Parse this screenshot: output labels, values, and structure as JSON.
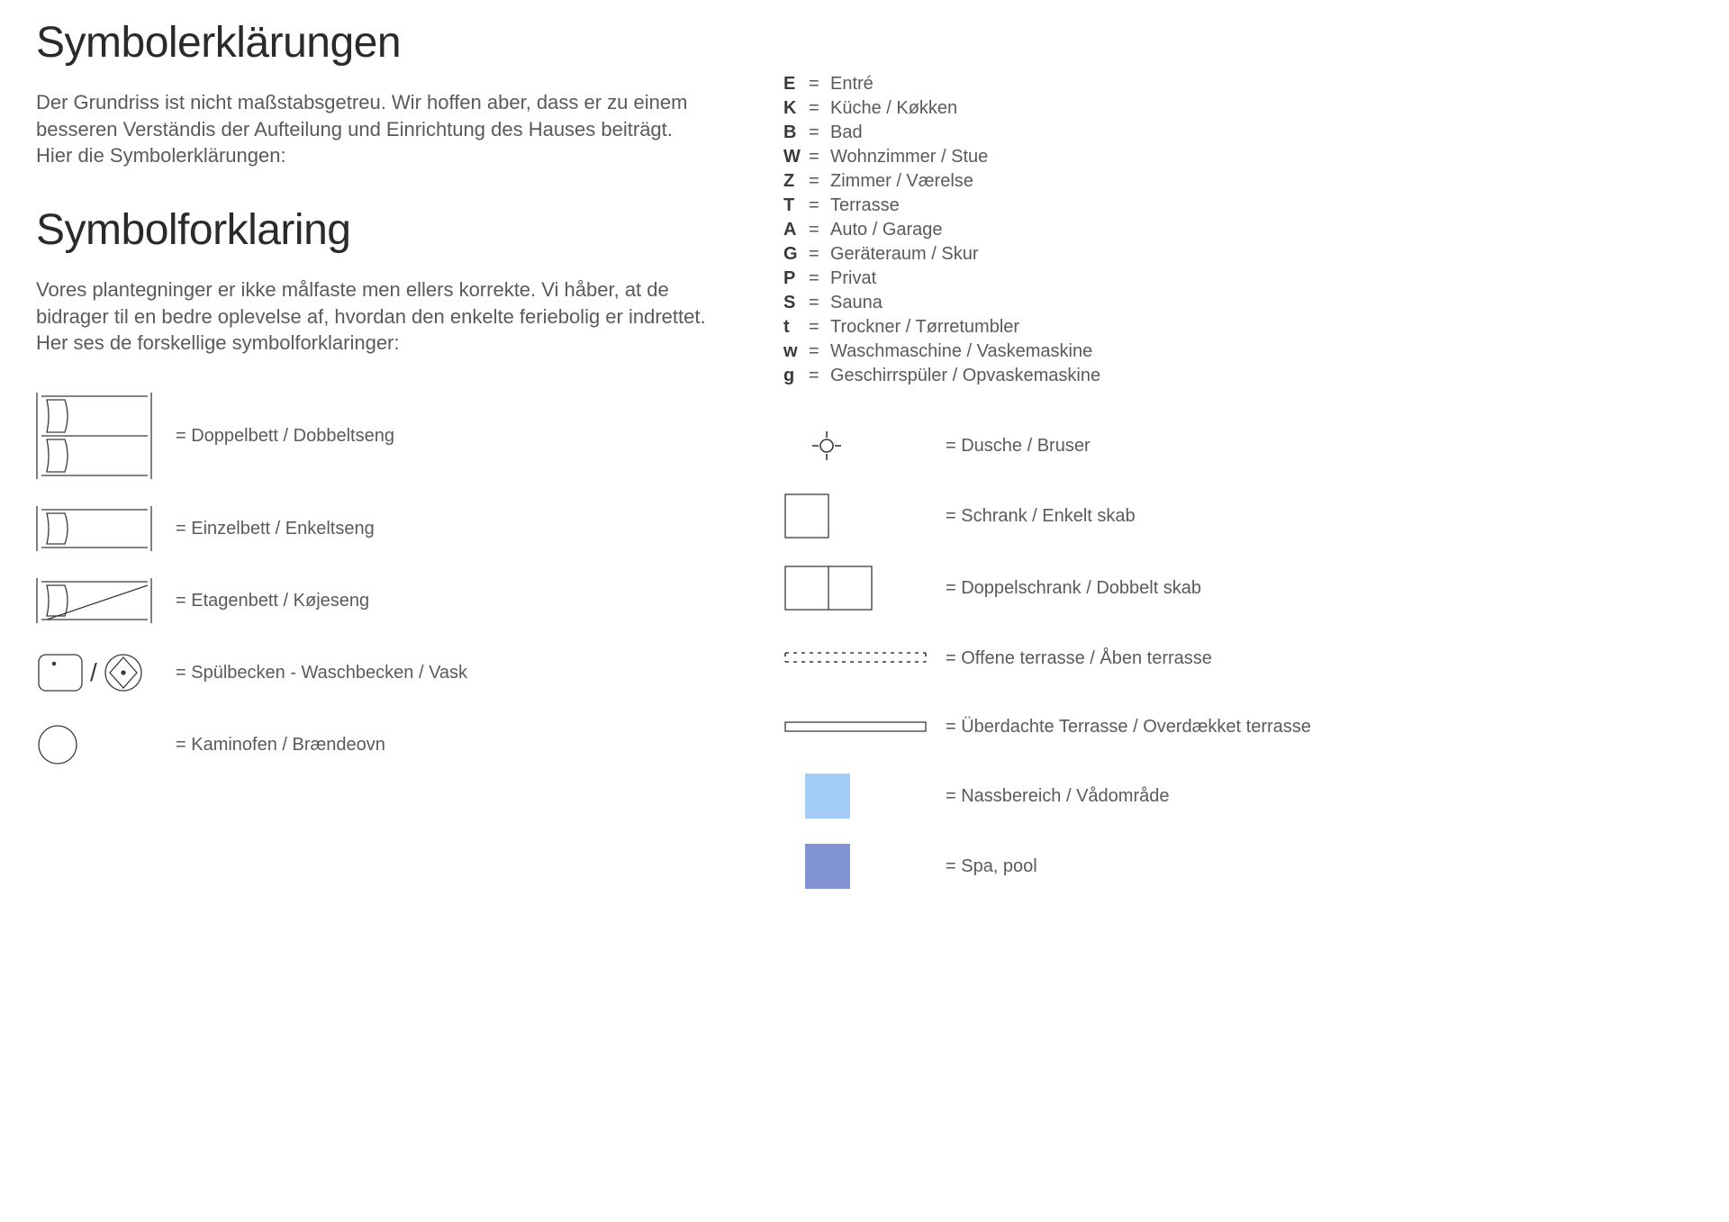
{
  "title_de": "Symbolerklärungen",
  "intro_de": "Der Grundriss ist nicht maßstabsgetreu. Wir hoffen aber, dass er zu einem besseren Verständis der Aufteilung und Einrichtung des Hauses beiträgt. Hier die Symbolerklärungen:",
  "title_dk": "Symbolforklaring",
  "intro_dk": "Vores plantegninger er ikke målfaste men ellers korrekte. Vi håber, at de bidrager til en bedre oplevelse af, hvordan den enkelte feriebolig er indrettet. Her ses de forskellige symbolforklaringer:",
  "left_legend": {
    "doppelbett": "= Doppelbett / Dobbeltseng",
    "einzelbett": "= Einzelbett / Enkeltseng",
    "etagenbett": "= Etagenbett / Køjeseng",
    "spuelbecken": "= Spülbecken - Waschbecken / Vask",
    "kaminofen": "= Kaminofen / Brændeovn"
  },
  "abbr": [
    {
      "key": "E",
      "val": "Entré"
    },
    {
      "key": "K",
      "val": "Küche / Køkken"
    },
    {
      "key": "B",
      "val": "Bad"
    },
    {
      "key": "W",
      "val": "Wohnzimmer / Stue"
    },
    {
      "key": "Z",
      "val": "Zimmer / Værelse"
    },
    {
      "key": "T",
      "val": "Terrasse"
    },
    {
      "key": "A",
      "val": "Auto / Garage"
    },
    {
      "key": "G",
      "val": "Geräteraum / Skur"
    },
    {
      "key": "P",
      "val": "Privat"
    },
    {
      "key": "S",
      "val": "Sauna"
    },
    {
      "key": "t",
      "val": "Trockner / Tørretumbler"
    },
    {
      "key": "w",
      "val": "Waschmaschine / Vaskemaskine"
    },
    {
      "key": "g",
      "val": "Geschirrspüler / Opvaskemaskine"
    }
  ],
  "right_legend": {
    "dusche": "= Dusche / Bruser",
    "schrank": "= Schrank / Enkelt skab",
    "doppelschrank": "= Doppelschrank / Dobbelt skab",
    "offene_terrasse": "= Offene terrasse / Åben terrasse",
    "ueberdachte_terrasse": "= Überdachte Terrasse / Overdækket terrasse",
    "nassbereich": "= Nassbereich / Vådområde",
    "spa": "= Spa, pool"
  },
  "colors": {
    "stroke": "#3a3a3a",
    "nass": "#a3cdf5",
    "spa": "#8193d3"
  }
}
